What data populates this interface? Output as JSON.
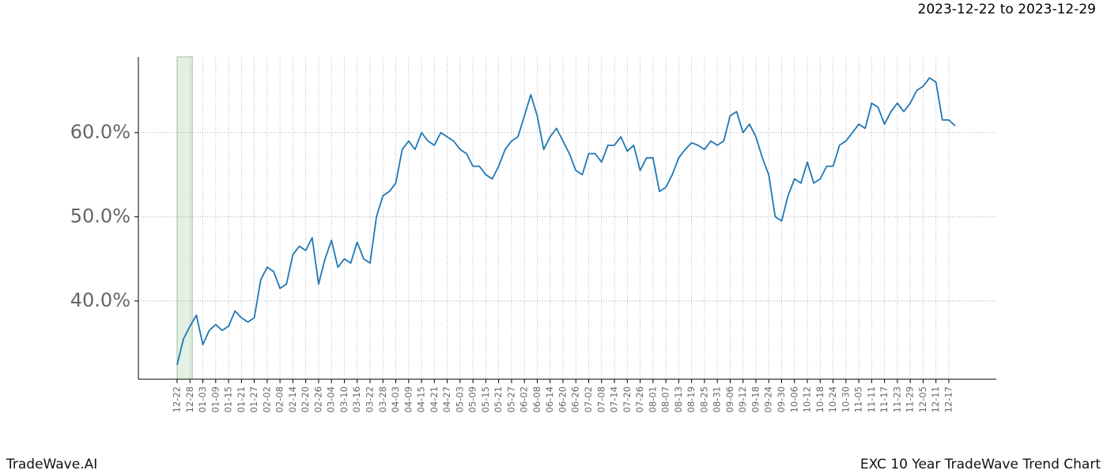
{
  "chart_data": {
    "type": "line",
    "subtitle": "2023-12-22 to 2023-12-29",
    "brand": "TradeWave.AI",
    "title": "EXC 10 Year TradeWave Trend Chart",
    "categories": [
      "12-22",
      null,
      "12-28",
      null,
      "01-03",
      null,
      "01-09",
      null,
      "01-15",
      null,
      "01-21",
      null,
      "01-27",
      null,
      "02-02",
      null,
      "02-08",
      null,
      "02-14",
      null,
      "02-20",
      null,
      "02-26",
      null,
      "03-04",
      null,
      "03-10",
      null,
      "03-16",
      null,
      "03-22",
      null,
      "03-28",
      null,
      "04-03",
      null,
      "04-09",
      null,
      "04-15",
      null,
      "04-21",
      null,
      "04-27",
      null,
      "05-03",
      null,
      "05-09",
      null,
      "05-15",
      null,
      "05-21",
      null,
      "05-27",
      null,
      "06-02",
      null,
      "06-08",
      null,
      "06-14",
      null,
      "06-20",
      null,
      "06-26",
      null,
      "07-02",
      null,
      "07-08",
      null,
      "07-14",
      null,
      "07-20",
      null,
      "07-26",
      null,
      "08-01",
      null,
      "08-07",
      null,
      "08-13",
      null,
      "08-19",
      null,
      "08-25",
      null,
      "08-31",
      null,
      "09-06",
      null,
      "09-12",
      null,
      "09-18",
      null,
      "09-24",
      null,
      "09-30",
      null,
      "10-06",
      null,
      "10-12",
      null,
      "10-18",
      null,
      "10-24",
      null,
      "10-30",
      null,
      "11-05",
      null,
      "11-11",
      null,
      "11-17",
      null,
      "11-23",
      null,
      "11-29",
      null,
      "12-05",
      null,
      "12-11",
      null,
      "12-17",
      null
    ],
    "series": [
      {
        "color": "#1f77b4",
        "values": [
          32.4,
          35.5,
          37.0,
          38.3,
          34.8,
          36.5,
          37.2,
          36.5,
          37.0,
          38.8,
          38.0,
          37.5,
          38.0,
          42.5,
          44.0,
          43.5,
          41.5,
          42.0,
          45.5,
          46.5,
          46.0,
          47.5,
          42.0,
          45.0,
          47.2,
          44.0,
          45.0,
          44.5,
          47.0,
          45.0,
          44.5,
          50.0,
          52.5,
          53.0,
          54.0,
          58.0,
          59.0,
          58.0,
          60.0,
          59.0,
          58.5,
          60.0,
          59.5,
          59.0,
          58.0,
          57.5,
          56.0,
          56.0,
          55.0,
          54.5,
          56.0,
          58.0,
          59.0,
          59.5,
          62.0,
          64.5,
          62.0,
          58.0,
          59.5,
          60.5,
          59.0,
          57.5,
          55.5,
          55.0,
          57.5,
          57.5,
          56.5,
          58.5,
          58.5,
          59.5,
          57.8,
          58.5,
          55.5,
          57.0,
          57.0,
          53.0,
          53.5,
          55.0,
          57.0,
          58.0,
          58.8,
          58.5,
          58.0,
          59.0,
          58.5,
          59.0,
          62.0,
          62.5,
          60.0,
          61.0,
          59.5,
          57.0,
          55.0,
          50.0,
          49.5,
          52.5,
          54.5,
          54.0,
          56.5,
          54.0,
          54.5,
          56.0,
          56.0,
          58.5,
          59.0,
          60.0,
          61.0,
          60.5,
          63.5,
          63.0,
          61.0,
          62.5,
          63.5,
          62.5,
          63.5,
          65.0,
          65.5,
          66.5,
          66.0,
          61.5,
          61.5,
          60.8
        ]
      }
    ],
    "ylim": [
      30.7,
      69.0
    ],
    "yticks": [
      {
        "value": 40,
        "label": "40.0%"
      },
      {
        "value": 50,
        "label": "50.0%"
      },
      {
        "value": 60,
        "label": "60.0%"
      }
    ],
    "grid": true
  }
}
